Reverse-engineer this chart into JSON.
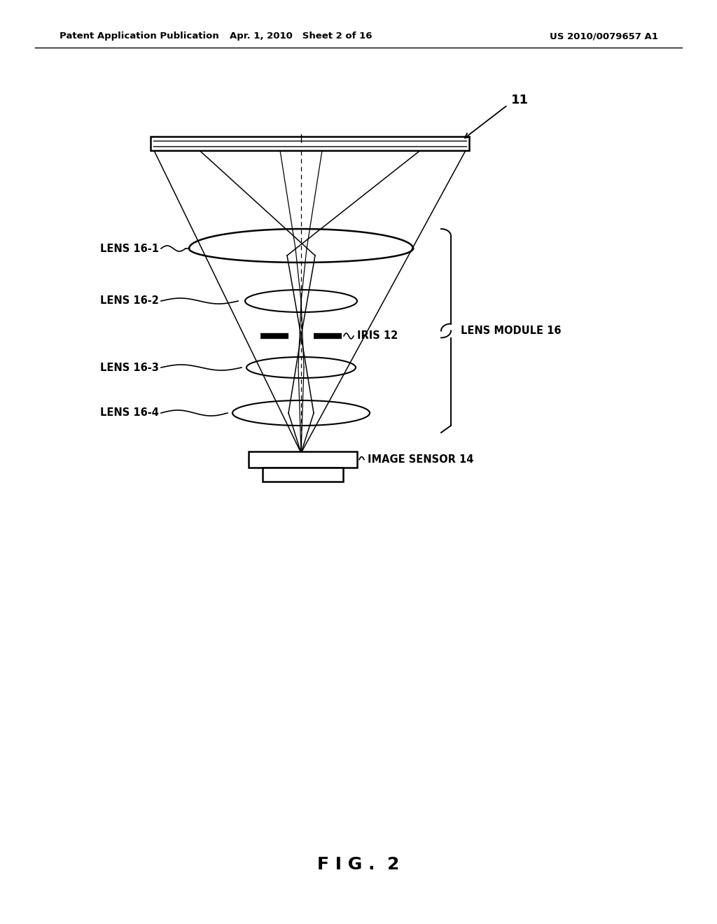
{
  "header_left": "Patent Application Publication",
  "header_mid": "Apr. 1, 2010   Sheet 2 of 16",
  "header_right": "US 2010/0079657 A1",
  "fig_label": "F I G .  2",
  "label_11": "11",
  "label_iris": "IRIS 12",
  "label_lens_module": "LENS MODULE 16",
  "label_image_sensor": "IMAGE SENSOR 14",
  "label_lens1": "LENS 16-1",
  "label_lens2": "LENS 16-2",
  "label_lens3": "LENS 16-3",
  "label_lens4": "LENS 16-4",
  "bg_color": "#ffffff",
  "line_color": "#000000"
}
